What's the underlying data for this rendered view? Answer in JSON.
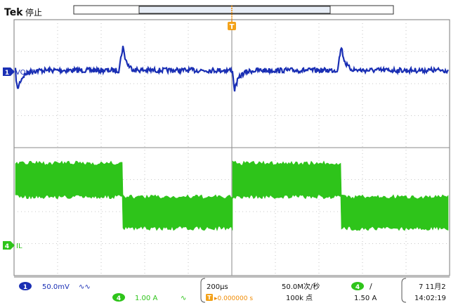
{
  "header": {
    "brand": "Tek",
    "run_state": "停止",
    "trigger_marker": "T"
  },
  "channels": {
    "ch1": {
      "number": "1",
      "label": "VOUT",
      "color": "#1a2fb4"
    },
    "ch4": {
      "number": "4",
      "label": "IL",
      "color": "#2ec41a"
    }
  },
  "status_bar": {
    "ch1_scale": "50.0mV",
    "ch1_coupling_icon": "bandwidth-limit-icon",
    "ch4_scale": "1.00 A",
    "ch4_coupling_icon": "bandwidth-limit-icon",
    "timebase": "200µs",
    "trigger_pos_marker": "T",
    "trigger_offset": "▸0.000000 s",
    "sample_rate": "50.0M次/秒",
    "record_length": "100k 点",
    "trigger_source": "4",
    "trigger_slope": "/",
    "trigger_level": "1.50 A",
    "date": "7 11月2",
    "time": "14:02:19"
  }
}
